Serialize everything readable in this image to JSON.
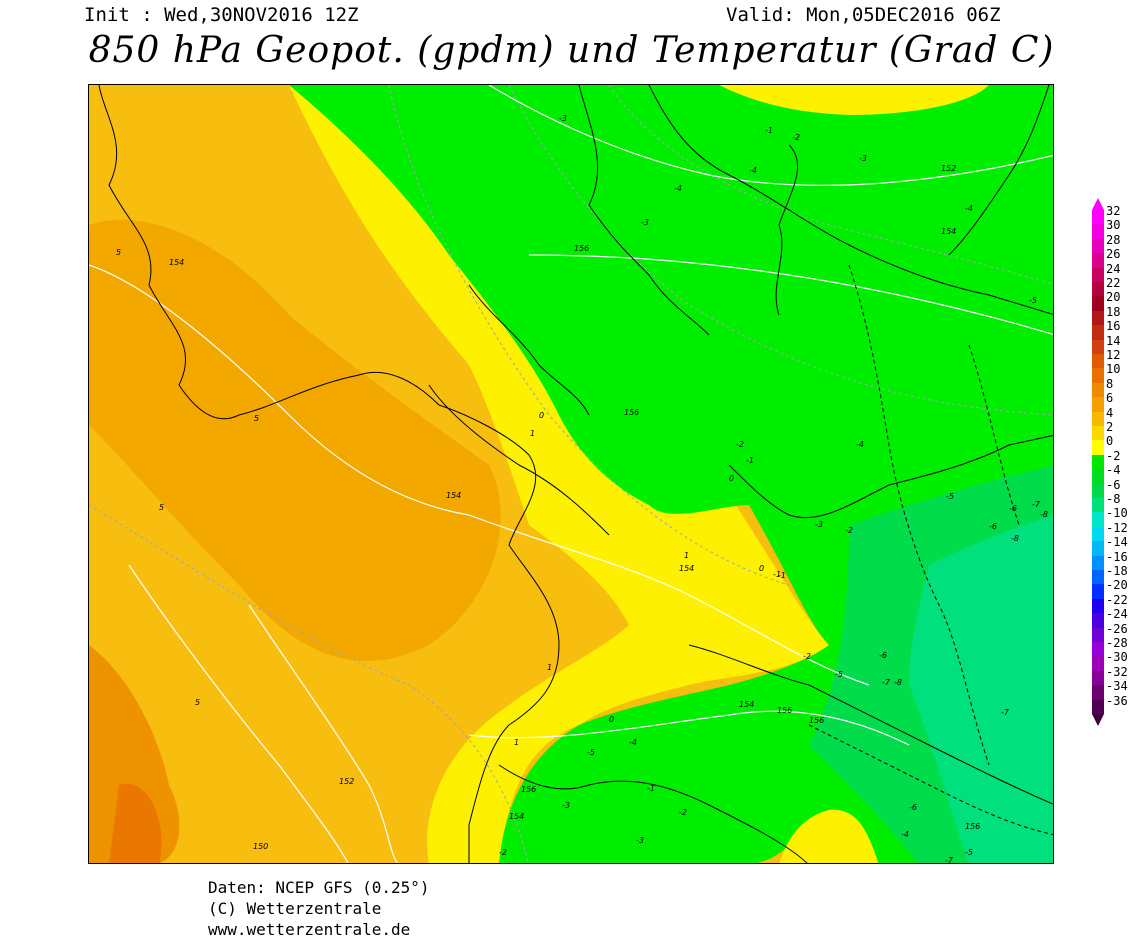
{
  "header": {
    "init": "Init : Wed,30NOV2016 12Z",
    "valid": "Valid: Mon,05DEC2016 06Z",
    "title": "850 hPa Geopot. (gpdm) und Temperatur (Grad C)"
  },
  "legend": {
    "levels": [
      {
        "label": "32",
        "color": "#ff00ff"
      },
      {
        "label": "30",
        "color": "#f200e0"
      },
      {
        "label": "28",
        "color": "#e600c0"
      },
      {
        "label": "26",
        "color": "#da0090"
      },
      {
        "label": "24",
        "color": "#c80060"
      },
      {
        "label": "22",
        "color": "#b4003c"
      },
      {
        "label": "20",
        "color": "#a00020"
      },
      {
        "label": "18",
        "color": "#b01818"
      },
      {
        "label": "16",
        "color": "#c22c10"
      },
      {
        "label": "14",
        "color": "#d24010"
      },
      {
        "label": "12",
        "color": "#e05a00"
      },
      {
        "label": "10",
        "color": "#ea7000"
      },
      {
        "label": "8",
        "color": "#f08800"
      },
      {
        "label": "6",
        "color": "#f5a000"
      },
      {
        "label": "4",
        "color": "#f8b800"
      },
      {
        "label": "2",
        "color": "#fcd800"
      },
      {
        "label": "0",
        "color": "#ffff00"
      },
      {
        "label": "-2",
        "color": "#00e600"
      },
      {
        "label": "-4",
        "color": "#00dc1e"
      },
      {
        "label": "-6",
        "color": "#00d848"
      },
      {
        "label": "-8",
        "color": "#00e078"
      },
      {
        "label": "-10",
        "color": "#00e6c8"
      },
      {
        "label": "-12",
        "color": "#00d8f0"
      },
      {
        "label": "-14",
        "color": "#00b8f8"
      },
      {
        "label": "-16",
        "color": "#0090ff"
      },
      {
        "label": "-18",
        "color": "#0064ff"
      },
      {
        "label": "-20",
        "color": "#0030ff"
      },
      {
        "label": "-22",
        "color": "#2000f0"
      },
      {
        "label": "-24",
        "color": "#4a00e0"
      },
      {
        "label": "-26",
        "color": "#7000d8"
      },
      {
        "label": "-28",
        "color": "#9800d8"
      },
      {
        "label": "-30",
        "color": "#9c00b8"
      },
      {
        "label": "-32",
        "color": "#880098"
      },
      {
        "label": "-34",
        "color": "#6c0070"
      },
      {
        "label": "-36",
        "color": "#500050"
      }
    ],
    "top_arrow_color": "#ff00ff",
    "bottom_arrow_color": "#3c003c"
  },
  "map": {
    "temp_labels": [
      "-3",
      "-1",
      "-2",
      "-3",
      "-4",
      "-4",
      "-3",
      "-4",
      "-5",
      "-2",
      "-1",
      "-4",
      "-5",
      "-6",
      "-7",
      "-8",
      "-6",
      "-8",
      "-3",
      "-2",
      "-1",
      "-1",
      "-2",
      "-5",
      "-6",
      "-7",
      "-8",
      "-6",
      "-4",
      "-5",
      "-6",
      "-7",
      "-2",
      "-3",
      "-4",
      "-5",
      "-3",
      "-2",
      "-1",
      "0",
      "1",
      "5",
      "5",
      "5",
      "5"
    ],
    "geopot_labels": [
      "152",
      "154",
      "156",
      "156",
      "154",
      "154",
      "156",
      "156",
      "154",
      "152",
      "150",
      "156",
      "154",
      "156"
    ],
    "zero_labels": [
      "0",
      "0",
      "0",
      "1",
      "1",
      "1"
    ]
  },
  "credits": {
    "line1": "Daten: NCEP GFS (0.25°)",
    "line2": "(C) Wetterzentrale",
    "line3": "www.wetterzentrale.de"
  }
}
